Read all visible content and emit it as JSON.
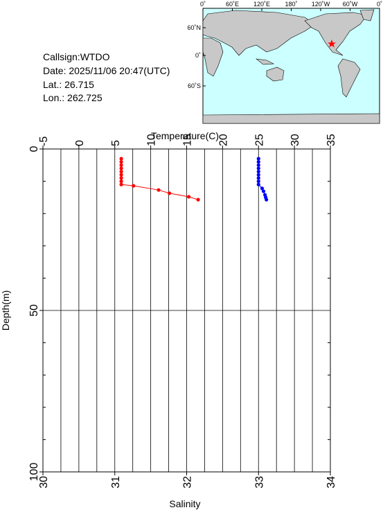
{
  "info": {
    "callsign": "Callsign:WTDO",
    "date": "Date:  2025/11/06 20:47(UTC)",
    "lat": "Lat.:  26.715",
    "lon": "Lon.:  262.725"
  },
  "map": {
    "lon_labels": [
      "0˚",
      "60˚E",
      "120˚E",
      "180˚",
      "120˚W",
      "60˚W",
      "0˚"
    ],
    "lat_labels": [
      "60˚N",
      "0˚",
      "60˚S"
    ]
  },
  "chart_data": {
    "type": "profile",
    "x_label": "Temperature(C)",
    "x2_label": "Salinity",
    "y_label": "Depth(m)",
    "xlim": [
      -5,
      35
    ],
    "xticks": [
      -5,
      0,
      5,
      10,
      15,
      20,
      25,
      30,
      35
    ],
    "x2lim": [
      30,
      34
    ],
    "x2ticks": [
      30,
      31,
      32,
      33,
      34
    ],
    "ylim": [
      0,
      100
    ],
    "yticks": [
      0,
      50,
      100
    ],
    "y_inverted": true,
    "grid": true,
    "series": [
      {
        "name": "Temperature",
        "axis": "x",
        "color": "#ff0000",
        "depths": [
          3,
          4,
          5,
          6,
          7,
          8,
          9,
          10,
          11,
          11.4,
          12.7,
          13.7,
          14.8,
          15.7
        ],
        "values": [
          5.9,
          5.9,
          5.9,
          5.9,
          5.9,
          5.9,
          5.9,
          5.9,
          5.9,
          7.6,
          11.1,
          12.6,
          15.3,
          16.6
        ]
      },
      {
        "name": "Salinity",
        "axis": "x2",
        "color": "#0000ff",
        "depths": [
          3,
          4,
          5,
          6,
          7,
          8,
          9,
          10,
          11,
          12.2,
          13.1,
          14.2,
          15.0,
          15.7
        ],
        "values": [
          33.0,
          33.0,
          33.0,
          33.0,
          33.0,
          33.0,
          33.0,
          33.0,
          33.0,
          33.05,
          33.07,
          33.09,
          33.1,
          33.11
        ]
      }
    ]
  }
}
